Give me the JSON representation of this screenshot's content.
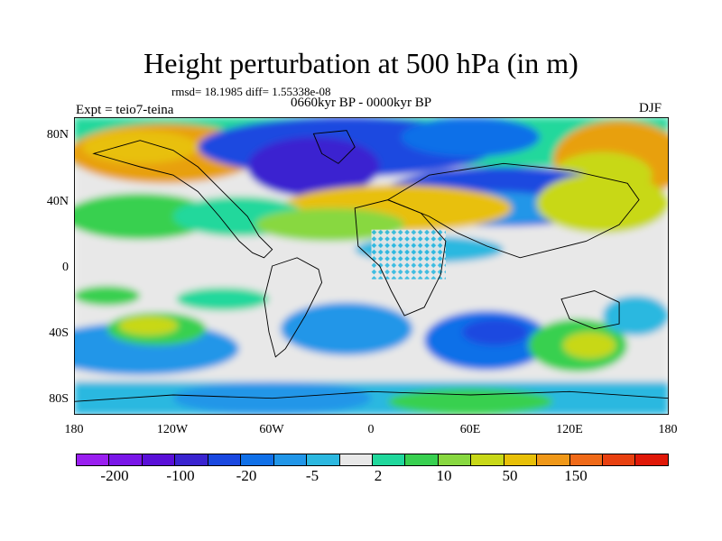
{
  "title": "Height perturbation at 500 hPa (in m)",
  "stats": "rmsd= 18.1985 diff= 1.55338e-08",
  "period": "0660kyr BP - 0000kyr BP",
  "experiment": "Expt = teio7-teina",
  "season": "DJF",
  "axes": {
    "y_ticks": [
      "80N",
      "40N",
      "0",
      "40S",
      "80S"
    ],
    "x_ticks": [
      "180",
      "120W",
      "60W",
      "0",
      "60E",
      "120E",
      "180"
    ]
  },
  "colorbar": {
    "colors": [
      "#9a1ff0",
      "#7a16e8",
      "#5a10d8",
      "#3a24d0",
      "#1a48e0",
      "#1070e8",
      "#2196e8",
      "#2cb8e0",
      "#e8e8e8",
      "#20d89c",
      "#38d050",
      "#88d840",
      "#c8d818",
      "#e8c008",
      "#f09818",
      "#f06a18",
      "#e84010",
      "#e01808"
    ],
    "labels": [
      "-200",
      "-100",
      "-20",
      "-5",
      "2",
      "10",
      "50",
      "150"
    ]
  },
  "field_colors": {
    "land_outline": "#000000",
    "neutral": "#e8e8e8",
    "strong_negative": "#3a24d0",
    "negative": "#1a48e0",
    "weak_negative": "#2196e8",
    "slight_negative": "#2cb8e0",
    "slight_positive": "#20d89c",
    "positive": "#38d050",
    "moderate_positive": "#c8d818",
    "strong_positive": "#e8a008"
  }
}
